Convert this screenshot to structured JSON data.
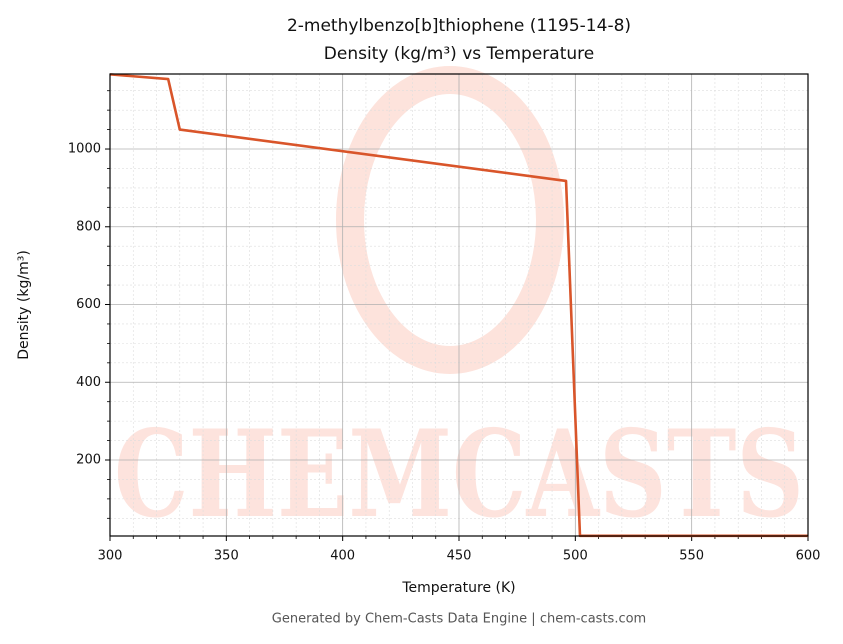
{
  "chart_data": {
    "type": "line",
    "title": "2-methylbenzo[b]thiophene (1195-14-8)",
    "subtitle": "Density (kg/m³) vs Temperature",
    "x_label": "Temperature (K)",
    "y_label": "Density (kg/m³)",
    "watermark": "CHEMCASTS",
    "footer": "Generated by Chem-Casts Data Engine | chem-casts.com",
    "x": [
      300,
      325,
      330,
      496,
      502,
      600
    ],
    "series": [
      {
        "name": "Density",
        "color": "#d9552a",
        "values": [
          1192,
          1180,
          1050,
          918,
          5,
          5
        ]
      }
    ],
    "xlim": [
      300,
      600
    ],
    "ylim": [
      4.5,
      1193
    ],
    "xticks": [
      300,
      350,
      400,
      450,
      500,
      550,
      600
    ],
    "yticks": [
      200,
      400,
      600,
      800,
      1000
    ],
    "xminorticks": [
      310,
      320,
      330,
      340,
      360,
      370,
      380,
      390,
      410,
      420,
      430,
      440,
      460,
      470,
      480,
      490,
      510,
      520,
      530,
      540,
      560,
      570,
      580,
      590
    ],
    "yminorticks": [
      50,
      100,
      150,
      250,
      300,
      350,
      450,
      500,
      550,
      650,
      700,
      750,
      850,
      900,
      950,
      1050,
      1100,
      1150
    ],
    "grid": true
  }
}
